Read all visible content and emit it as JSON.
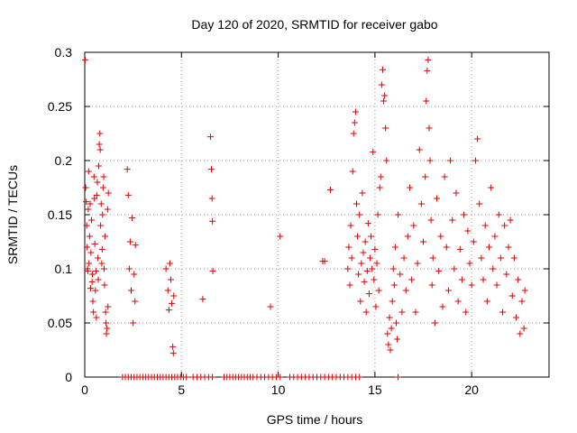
{
  "chart_data": {
    "type": "scatter",
    "title": "Day 120 of 2020, SRMTID for receiver gabo",
    "xlabel": "GPS time / hours",
    "ylabel": "SRMTID / TECUs",
    "xlim": [
      0,
      24
    ],
    "ylim": [
      0,
      0.3
    ],
    "xticks": [
      0,
      5,
      10,
      15,
      20
    ],
    "xtick_labels": [
      "0",
      "5",
      "10",
      "15",
      "20"
    ],
    "yticks": [
      0,
      0.05,
      0.1,
      0.15,
      0.2,
      0.25,
      0.3
    ],
    "ytick_labels": [
      "0",
      "0.05",
      "0.1",
      "0.15",
      "0.2",
      "0.25",
      "0.3"
    ],
    "grid": true,
    "legend": "none",
    "marker": "plus",
    "series": [
      {
        "name": "SRMTID",
        "color": "#e00000",
        "points": [
          [
            0.02,
            0.293
          ],
          [
            0.05,
            0.175
          ],
          [
            0.08,
            0.162
          ],
          [
            0.1,
            0.14
          ],
          [
            0.12,
            0.12
          ],
          [
            0.14,
            0.1
          ],
          [
            0.16,
            0.098
          ],
          [
            0.18,
            0.155
          ],
          [
            0.2,
            0.19
          ],
          [
            0.22,
            0.105
          ],
          [
            0.25,
            0.13
          ],
          [
            0.28,
            0.16
          ],
          [
            0.3,
            0.082
          ],
          [
            0.32,
            0.115
          ],
          [
            0.35,
            0.145
          ],
          [
            0.38,
            0.088
          ],
          [
            0.4,
            0.095
          ],
          [
            0.42,
            0.07
          ],
          [
            0.45,
            0.06
          ],
          [
            0.48,
            0.185
          ],
          [
            0.5,
            0.165
          ],
          [
            0.52,
            0.123
          ],
          [
            0.55,
            0.08
          ],
          [
            0.58,
            0.098
          ],
          [
            0.6,
            0.055
          ],
          [
            0.62,
            0.168
          ],
          [
            0.65,
            0.18
          ],
          [
            0.68,
            0.11
          ],
          [
            0.7,
            0.09
          ],
          [
            0.72,
            0.195
          ],
          [
            0.75,
            0.215
          ],
          [
            0.78,
            0.225
          ],
          [
            0.8,
            0.21
          ],
          [
            0.82,
            0.14
          ],
          [
            0.85,
            0.16
          ],
          [
            0.88,
            0.105
          ],
          [
            0.9,
            0.118
          ],
          [
            0.92,
            0.15
          ],
          [
            0.95,
            0.175
          ],
          [
            0.98,
            0.185
          ],
          [
            1.0,
            0.1
          ],
          [
            1.02,
            0.085
          ],
          [
            1.05,
            0.13
          ],
          [
            1.08,
            0.06
          ],
          [
            1.1,
            0.05
          ],
          [
            1.12,
            0.04
          ],
          [
            1.15,
            0.045
          ],
          [
            1.18,
            0.155
          ],
          [
            1.2,
            0.065
          ],
          [
            1.22,
            0.17
          ],
          [
            2.2,
            0.192
          ],
          [
            2.25,
            0.168
          ],
          [
            2.3,
            0.1
          ],
          [
            2.35,
            0.125
          ],
          [
            2.4,
            0.08
          ],
          [
            2.45,
            0.147
          ],
          [
            2.5,
            0.05
          ],
          [
            2.55,
            0.095
          ],
          [
            2.6,
            0.07
          ],
          [
            2.62,
            0.122
          ],
          [
            4.2,
            0.1
          ],
          [
            4.3,
            0.08
          ],
          [
            4.35,
            0.062
          ],
          [
            4.4,
            0.105
          ],
          [
            4.45,
            0.09
          ],
          [
            4.5,
            0.068
          ],
          [
            4.55,
            0.028
          ],
          [
            4.58,
            0.022
          ],
          [
            4.6,
            0.075
          ],
          [
            6.1,
            0.072
          ],
          [
            6.5,
            0.222
          ],
          [
            6.55,
            0.192
          ],
          [
            6.58,
            0.165
          ],
          [
            6.6,
            0.144
          ],
          [
            6.62,
            0.098
          ],
          [
            9.6,
            0.065
          ],
          [
            10.1,
            0.13
          ],
          [
            12.3,
            0.107
          ],
          [
            12.4,
            0.107
          ],
          [
            12.7,
            0.173
          ],
          [
            13.6,
            0.1
          ],
          [
            13.65,
            0.12
          ],
          [
            13.7,
            0.085
          ],
          [
            13.75,
            0.14
          ],
          [
            13.8,
            0.11
          ],
          [
            13.85,
            0.19
          ],
          [
            13.9,
            0.225
          ],
          [
            13.95,
            0.235
          ],
          [
            14.0,
            0.245
          ],
          [
            14.05,
            0.16
          ],
          [
            14.1,
            0.13
          ],
          [
            14.15,
            0.095
          ],
          [
            14.2,
            0.15
          ],
          [
            14.25,
            0.07
          ],
          [
            14.3,
            0.105
          ],
          [
            14.35,
            0.17
          ],
          [
            14.4,
            0.115
          ],
          [
            14.45,
            0.088
          ],
          [
            14.5,
            0.125
          ],
          [
            14.55,
            0.06
          ],
          [
            14.6,
            0.098
          ],
          [
            14.65,
            0.142
          ],
          [
            14.7,
            0.077
          ],
          [
            14.75,
            0.11
          ],
          [
            14.8,
            0.13
          ],
          [
            14.85,
            0.1
          ],
          [
            14.9,
            0.208
          ],
          [
            14.95,
            0.09
          ],
          [
            15.0,
            0.118
          ],
          [
            15.05,
            0.065
          ],
          [
            15.1,
            0.105
          ],
          [
            15.15,
            0.15
          ],
          [
            15.2,
            0.08
          ],
          [
            15.25,
            0.175
          ],
          [
            15.3,
            0.185
          ],
          [
            15.35,
            0.27
          ],
          [
            15.4,
            0.284
          ],
          [
            15.45,
            0.255
          ],
          [
            15.5,
            0.26
          ],
          [
            15.55,
            0.23
          ],
          [
            15.6,
            0.2
          ],
          [
            15.65,
            0.04
          ],
          [
            15.7,
            0.03
          ],
          [
            15.75,
            0.055
          ],
          [
            15.8,
            0.025
          ],
          [
            15.85,
            0.045
          ],
          [
            15.9,
            0.07
          ],
          [
            15.95,
            0.1
          ],
          [
            16.0,
            0.085
          ],
          [
            16.05,
            0.12
          ],
          [
            16.1,
            0.05
          ],
          [
            16.15,
            0.035
          ],
          [
            16.2,
            0.15
          ],
          [
            16.3,
            0.095
          ],
          [
            16.4,
            0.06
          ],
          [
            16.5,
            0.11
          ],
          [
            16.6,
            0.08
          ],
          [
            16.7,
            0.13
          ],
          [
            16.8,
            0.175
          ],
          [
            16.9,
            0.09
          ],
          [
            17.0,
            0.14
          ],
          [
            17.1,
            0.06
          ],
          [
            17.2,
            0.105
          ],
          [
            17.3,
            0.21
          ],
          [
            17.4,
            0.16
          ],
          [
            17.5,
            0.125
          ],
          [
            17.6,
            0.185
          ],
          [
            17.65,
            0.255
          ],
          [
            17.7,
            0.283
          ],
          [
            17.75,
            0.293
          ],
          [
            17.8,
            0.23
          ],
          [
            17.85,
            0.2
          ],
          [
            17.9,
            0.145
          ],
          [
            17.95,
            0.085
          ],
          [
            18.0,
            0.11
          ],
          [
            18.1,
            0.05
          ],
          [
            18.2,
            0.165
          ],
          [
            18.3,
            0.098
          ],
          [
            18.4,
            0.13
          ],
          [
            18.5,
            0.065
          ],
          [
            18.6,
            0.185
          ],
          [
            18.7,
            0.12
          ],
          [
            18.8,
            0.08
          ],
          [
            18.9,
            0.2
          ],
          [
            19.0,
            0.145
          ],
          [
            19.1,
            0.1
          ],
          [
            19.2,
            0.17
          ],
          [
            19.3,
            0.07
          ],
          [
            19.4,
            0.118
          ],
          [
            19.5,
            0.09
          ],
          [
            19.6,
            0.15
          ],
          [
            19.7,
            0.06
          ],
          [
            19.8,
            0.135
          ],
          [
            19.9,
            0.105
          ],
          [
            20.0,
            0.085
          ],
          [
            20.1,
            0.125
          ],
          [
            20.2,
            0.2
          ],
          [
            20.3,
            0.22
          ],
          [
            20.4,
            0.16
          ],
          [
            20.5,
            0.11
          ],
          [
            20.6,
            0.09
          ],
          [
            20.7,
            0.14
          ],
          [
            20.8,
            0.07
          ],
          [
            20.9,
            0.12
          ],
          [
            21.0,
            0.175
          ],
          [
            21.1,
            0.1
          ],
          [
            21.2,
            0.13
          ],
          [
            21.3,
            0.085
          ],
          [
            21.4,
            0.15
          ],
          [
            21.5,
            0.11
          ],
          [
            21.6,
            0.06
          ],
          [
            21.7,
            0.14
          ],
          [
            21.8,
            0.095
          ],
          [
            21.9,
            0.12
          ],
          [
            22.0,
            0.145
          ],
          [
            22.1,
            0.075
          ],
          [
            22.2,
            0.11
          ],
          [
            22.3,
            0.055
          ],
          [
            22.4,
            0.09
          ],
          [
            22.5,
            0.04
          ],
          [
            22.6,
            0.07
          ],
          [
            22.7,
            0.045
          ],
          [
            22.75,
            0.08
          ],
          [
            1.95,
            0
          ],
          [
            2.1,
            0
          ],
          [
            2.25,
            0
          ],
          [
            2.4,
            0
          ],
          [
            2.55,
            0
          ],
          [
            2.7,
            0
          ],
          [
            2.85,
            0
          ],
          [
            3.0,
            0
          ],
          [
            3.15,
            0
          ],
          [
            3.3,
            0
          ],
          [
            3.45,
            0
          ],
          [
            3.6,
            0
          ],
          [
            3.75,
            0
          ],
          [
            3.9,
            0
          ],
          [
            4.05,
            0
          ],
          [
            4.2,
            0
          ],
          [
            4.35,
            0
          ],
          [
            4.5,
            0
          ],
          [
            4.65,
            0
          ],
          [
            4.8,
            0
          ],
          [
            4.95,
            0
          ],
          [
            5.1,
            0
          ],
          [
            5.25,
            0
          ],
          [
            5.6,
            0
          ],
          [
            5.8,
            0
          ],
          [
            6.0,
            0
          ],
          [
            6.2,
            0
          ],
          [
            6.4,
            0
          ],
          [
            6.6,
            0
          ],
          [
            7.2,
            0
          ],
          [
            7.35,
            0
          ],
          [
            7.5,
            0
          ],
          [
            7.65,
            0
          ],
          [
            7.8,
            0
          ],
          [
            7.95,
            0
          ],
          [
            8.1,
            0
          ],
          [
            8.25,
            0
          ],
          [
            8.4,
            0
          ],
          [
            8.55,
            0
          ],
          [
            8.7,
            0
          ],
          [
            8.9,
            0
          ],
          [
            9.1,
            0
          ],
          [
            9.3,
            0
          ],
          [
            9.5,
            0
          ],
          [
            9.7,
            0
          ],
          [
            9.9,
            0
          ],
          [
            10.1,
            0
          ],
          [
            10.6,
            0
          ],
          [
            10.8,
            0
          ],
          [
            11.0,
            0
          ],
          [
            11.2,
            0
          ],
          [
            11.4,
            0
          ],
          [
            11.6,
            0
          ],
          [
            11.8,
            0
          ],
          [
            12.0,
            0
          ],
          [
            12.2,
            0
          ],
          [
            12.4,
            0
          ],
          [
            12.6,
            0
          ],
          [
            12.8,
            0
          ],
          [
            13.0,
            0
          ],
          [
            13.2,
            0
          ],
          [
            13.4,
            0
          ],
          [
            13.6,
            0
          ],
          [
            13.8,
            0
          ],
          [
            14.0,
            0
          ],
          [
            14.2,
            0
          ],
          [
            16.2,
            0
          ]
        ]
      }
    ]
  }
}
